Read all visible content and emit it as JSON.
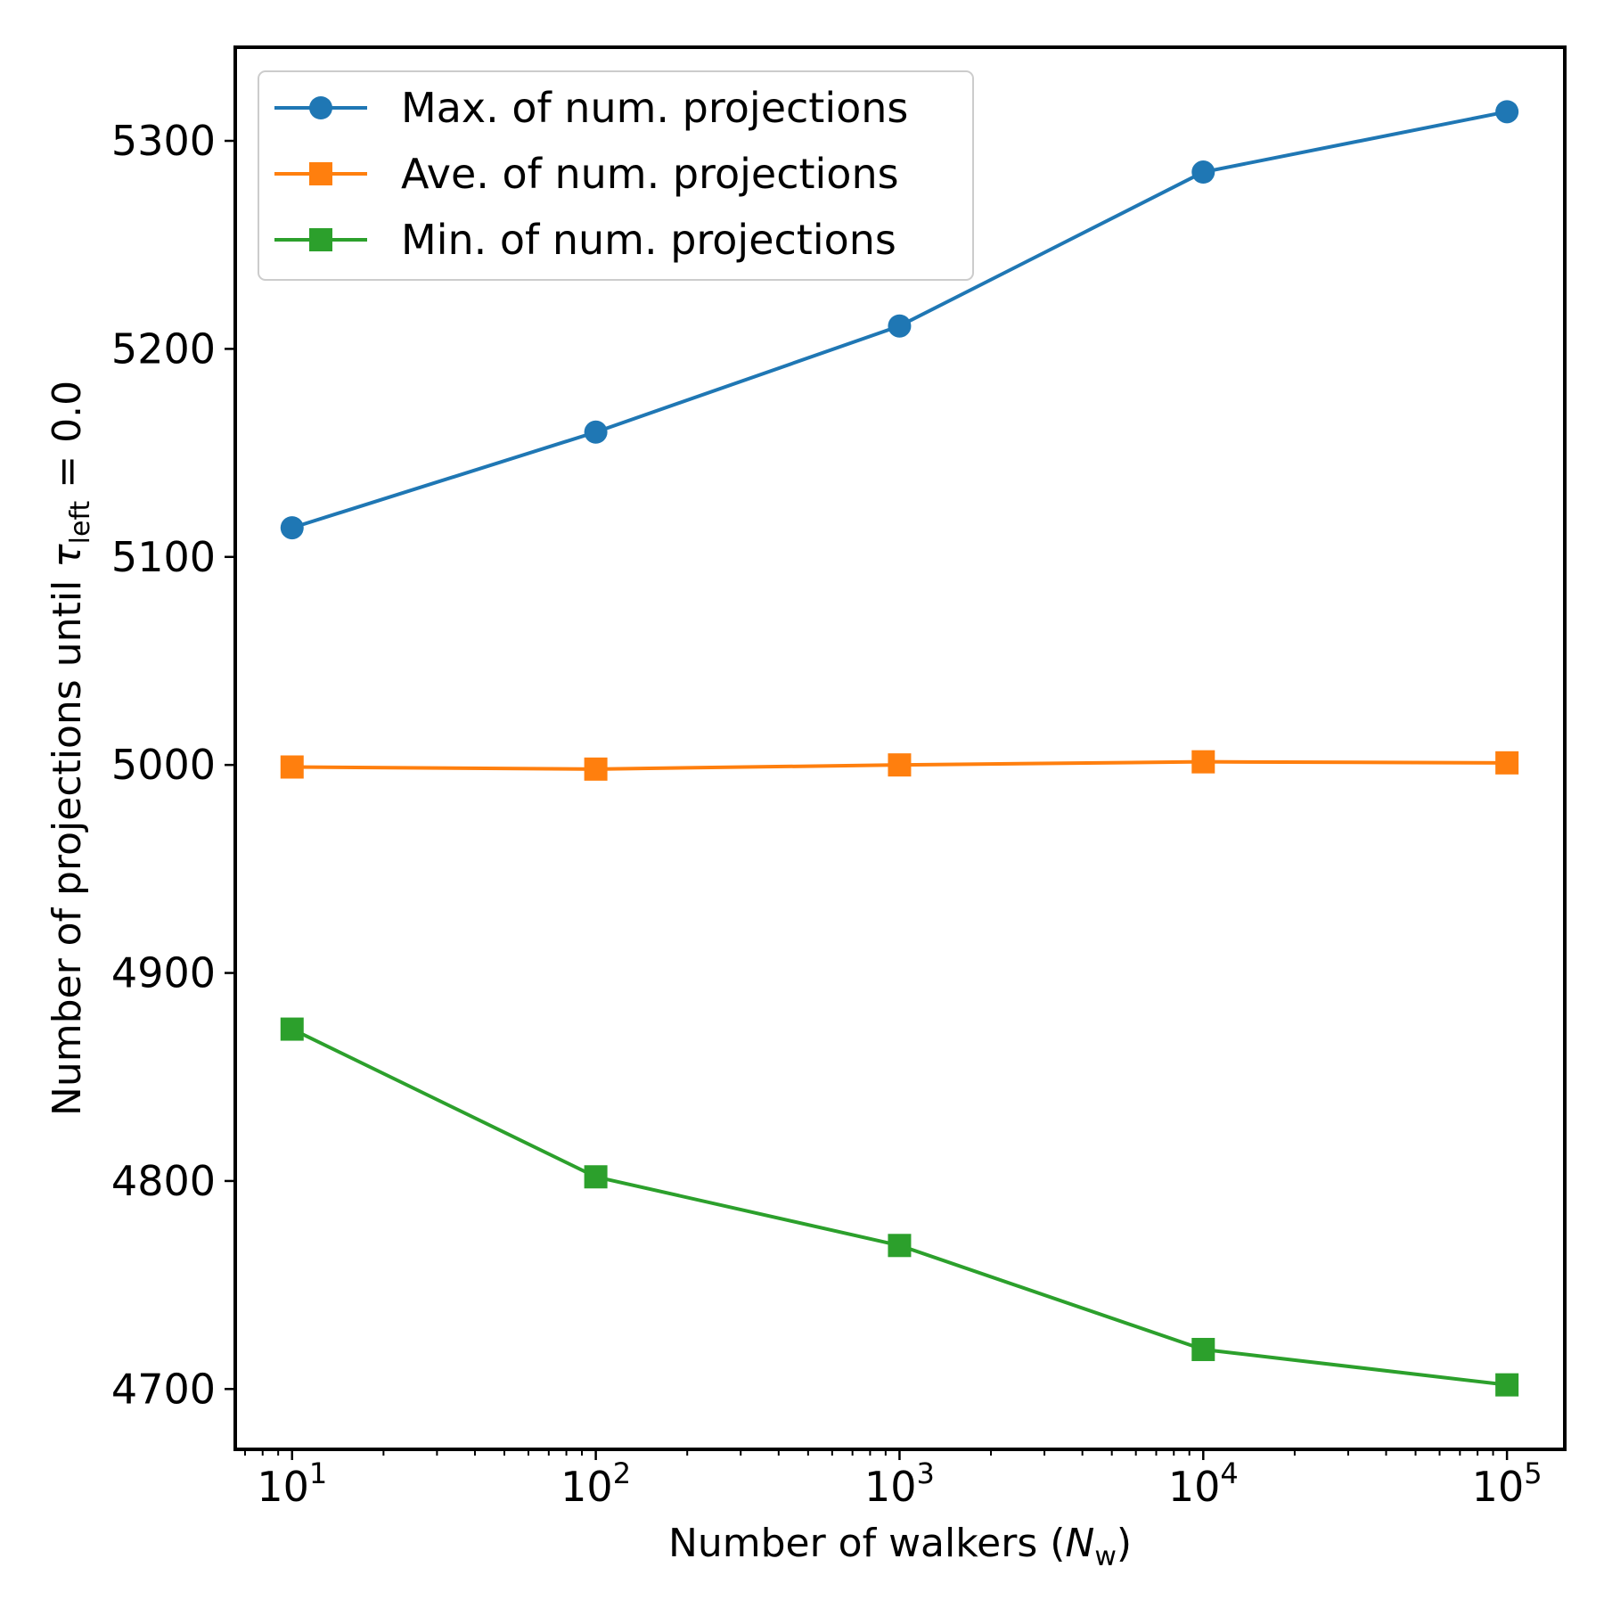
{
  "chart_data": {
    "type": "line",
    "x_scale": "log",
    "xlabel": {
      "text": "Number of walkers (",
      "symbol": "N",
      "sub": "w",
      "suffix": ")"
    },
    "ylabel": {
      "text": "Number of projections until ",
      "symbol": "τ",
      "sub": "left",
      "suffix": " = 0.0"
    },
    "x": [
      10,
      100,
      1000,
      10000,
      100000
    ],
    "x_ticks": [
      {
        "value": 10,
        "base": "10",
        "exp": "1"
      },
      {
        "value": 100,
        "base": "10",
        "exp": "2"
      },
      {
        "value": 1000,
        "base": "10",
        "exp": "3"
      },
      {
        "value": 10000,
        "base": "10",
        "exp": "4"
      },
      {
        "value": 100000,
        "base": "10",
        "exp": "5"
      }
    ],
    "xlim": [
      6.5,
      155000
    ],
    "ylim": [
      4671,
      5345
    ],
    "y_ticks": [
      4700,
      4800,
      4900,
      5000,
      5100,
      5200,
      5300
    ],
    "grid": false,
    "legend_position": "top-left",
    "series": [
      {
        "name": "Max. of num. projections",
        "color": "#1f77b4",
        "marker": "circle",
        "values": [
          5114,
          5160,
          5211,
          5285,
          5314
        ]
      },
      {
        "name": "Ave. of num. projections",
        "color": "#ff7f0e",
        "marker": "square",
        "values": [
          4999,
          4998,
          5000,
          5001.5,
          5001
        ]
      },
      {
        "name": "Min. of num. projections",
        "color": "#2ca02c",
        "marker": "square",
        "values": [
          4873,
          4802,
          4769,
          4719,
          4702
        ]
      }
    ]
  }
}
